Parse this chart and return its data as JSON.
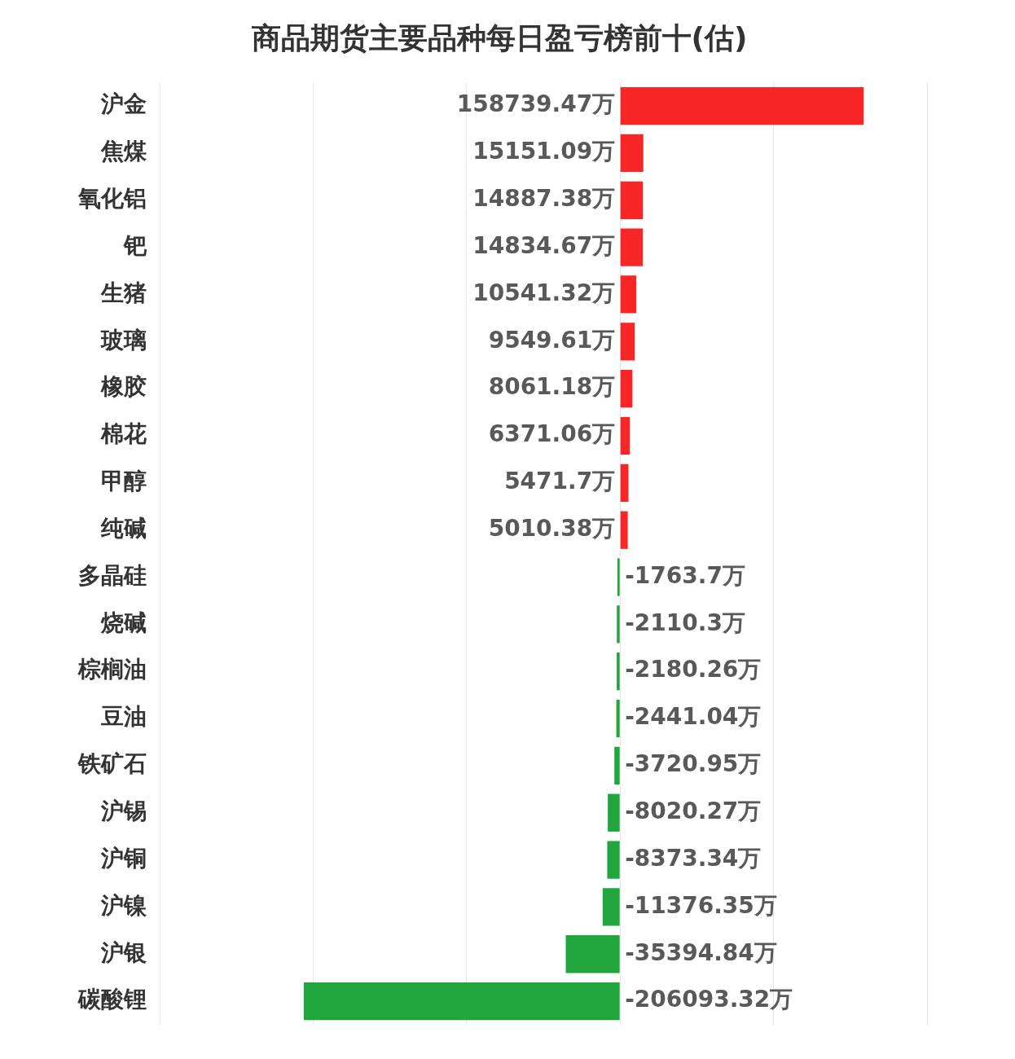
{
  "chart_data": {
    "type": "bar",
    "orientation": "horizontal",
    "title": "商品期货主要品种每日盈亏榜前十(估)",
    "categories": [
      "沪金",
      "焦煤",
      "氧化铝",
      "钯",
      "生猪",
      "玻璃",
      "橡胶",
      "棉花",
      "甲醇",
      "纯碱",
      "多晶硅",
      "烧碱",
      "棕榈油",
      "豆油",
      "铁矿石",
      "沪锡",
      "沪铜",
      "沪镍",
      "沪银",
      "碳酸锂"
    ],
    "values": [
      158739.47,
      15151.09,
      14887.38,
      14834.67,
      10541.32,
      9549.61,
      8061.18,
      6371.06,
      5471.7,
      5010.38,
      -1763.7,
      -2110.3,
      -2180.26,
      -2441.04,
      -3720.95,
      -8020.27,
      -8373.34,
      -11376.35,
      -35394.84,
      -206093.32
    ],
    "value_labels": [
      "158739.47万",
      "15151.09万",
      "14887.38万",
      "14834.67万",
      "10541.32万",
      "9549.61万",
      "8061.18万",
      "6371.06万",
      "5471.7万",
      "5010.38万",
      "-1763.7万",
      "-2110.3万",
      "-2180.26万",
      "-2441.04万",
      "-3720.95万",
      "-8020.27万",
      "-8373.34万",
      "-11376.35万",
      "-35394.84万",
      "-206093.32万"
    ],
    "colors": [
      "#f92628",
      "#f92628",
      "#f92628",
      "#f92628",
      "#f92628",
      "#f92628",
      "#f92628",
      "#f92628",
      "#f92628",
      "#f92628",
      "#21a53d",
      "#21a53d",
      "#21a53d",
      "#21a53d",
      "#21a53d",
      "#21a53d",
      "#21a53d",
      "#21a53d",
      "#21a53d",
      "#21a53d"
    ],
    "xlim": [
      -300000,
      200000
    ],
    "xticks": [
      {
        "value": -300000,
        "label": null
      },
      {
        "value": -200000,
        "label": null
      },
      {
        "value": -100000,
        "label": null
      },
      {
        "value": 0,
        "label": null
      },
      {
        "value": 100000,
        "label": null
      },
      {
        "value": 200000,
        "label": null
      }
    ],
    "grid": "x",
    "tick_labels": "y",
    "legend": false
  }
}
